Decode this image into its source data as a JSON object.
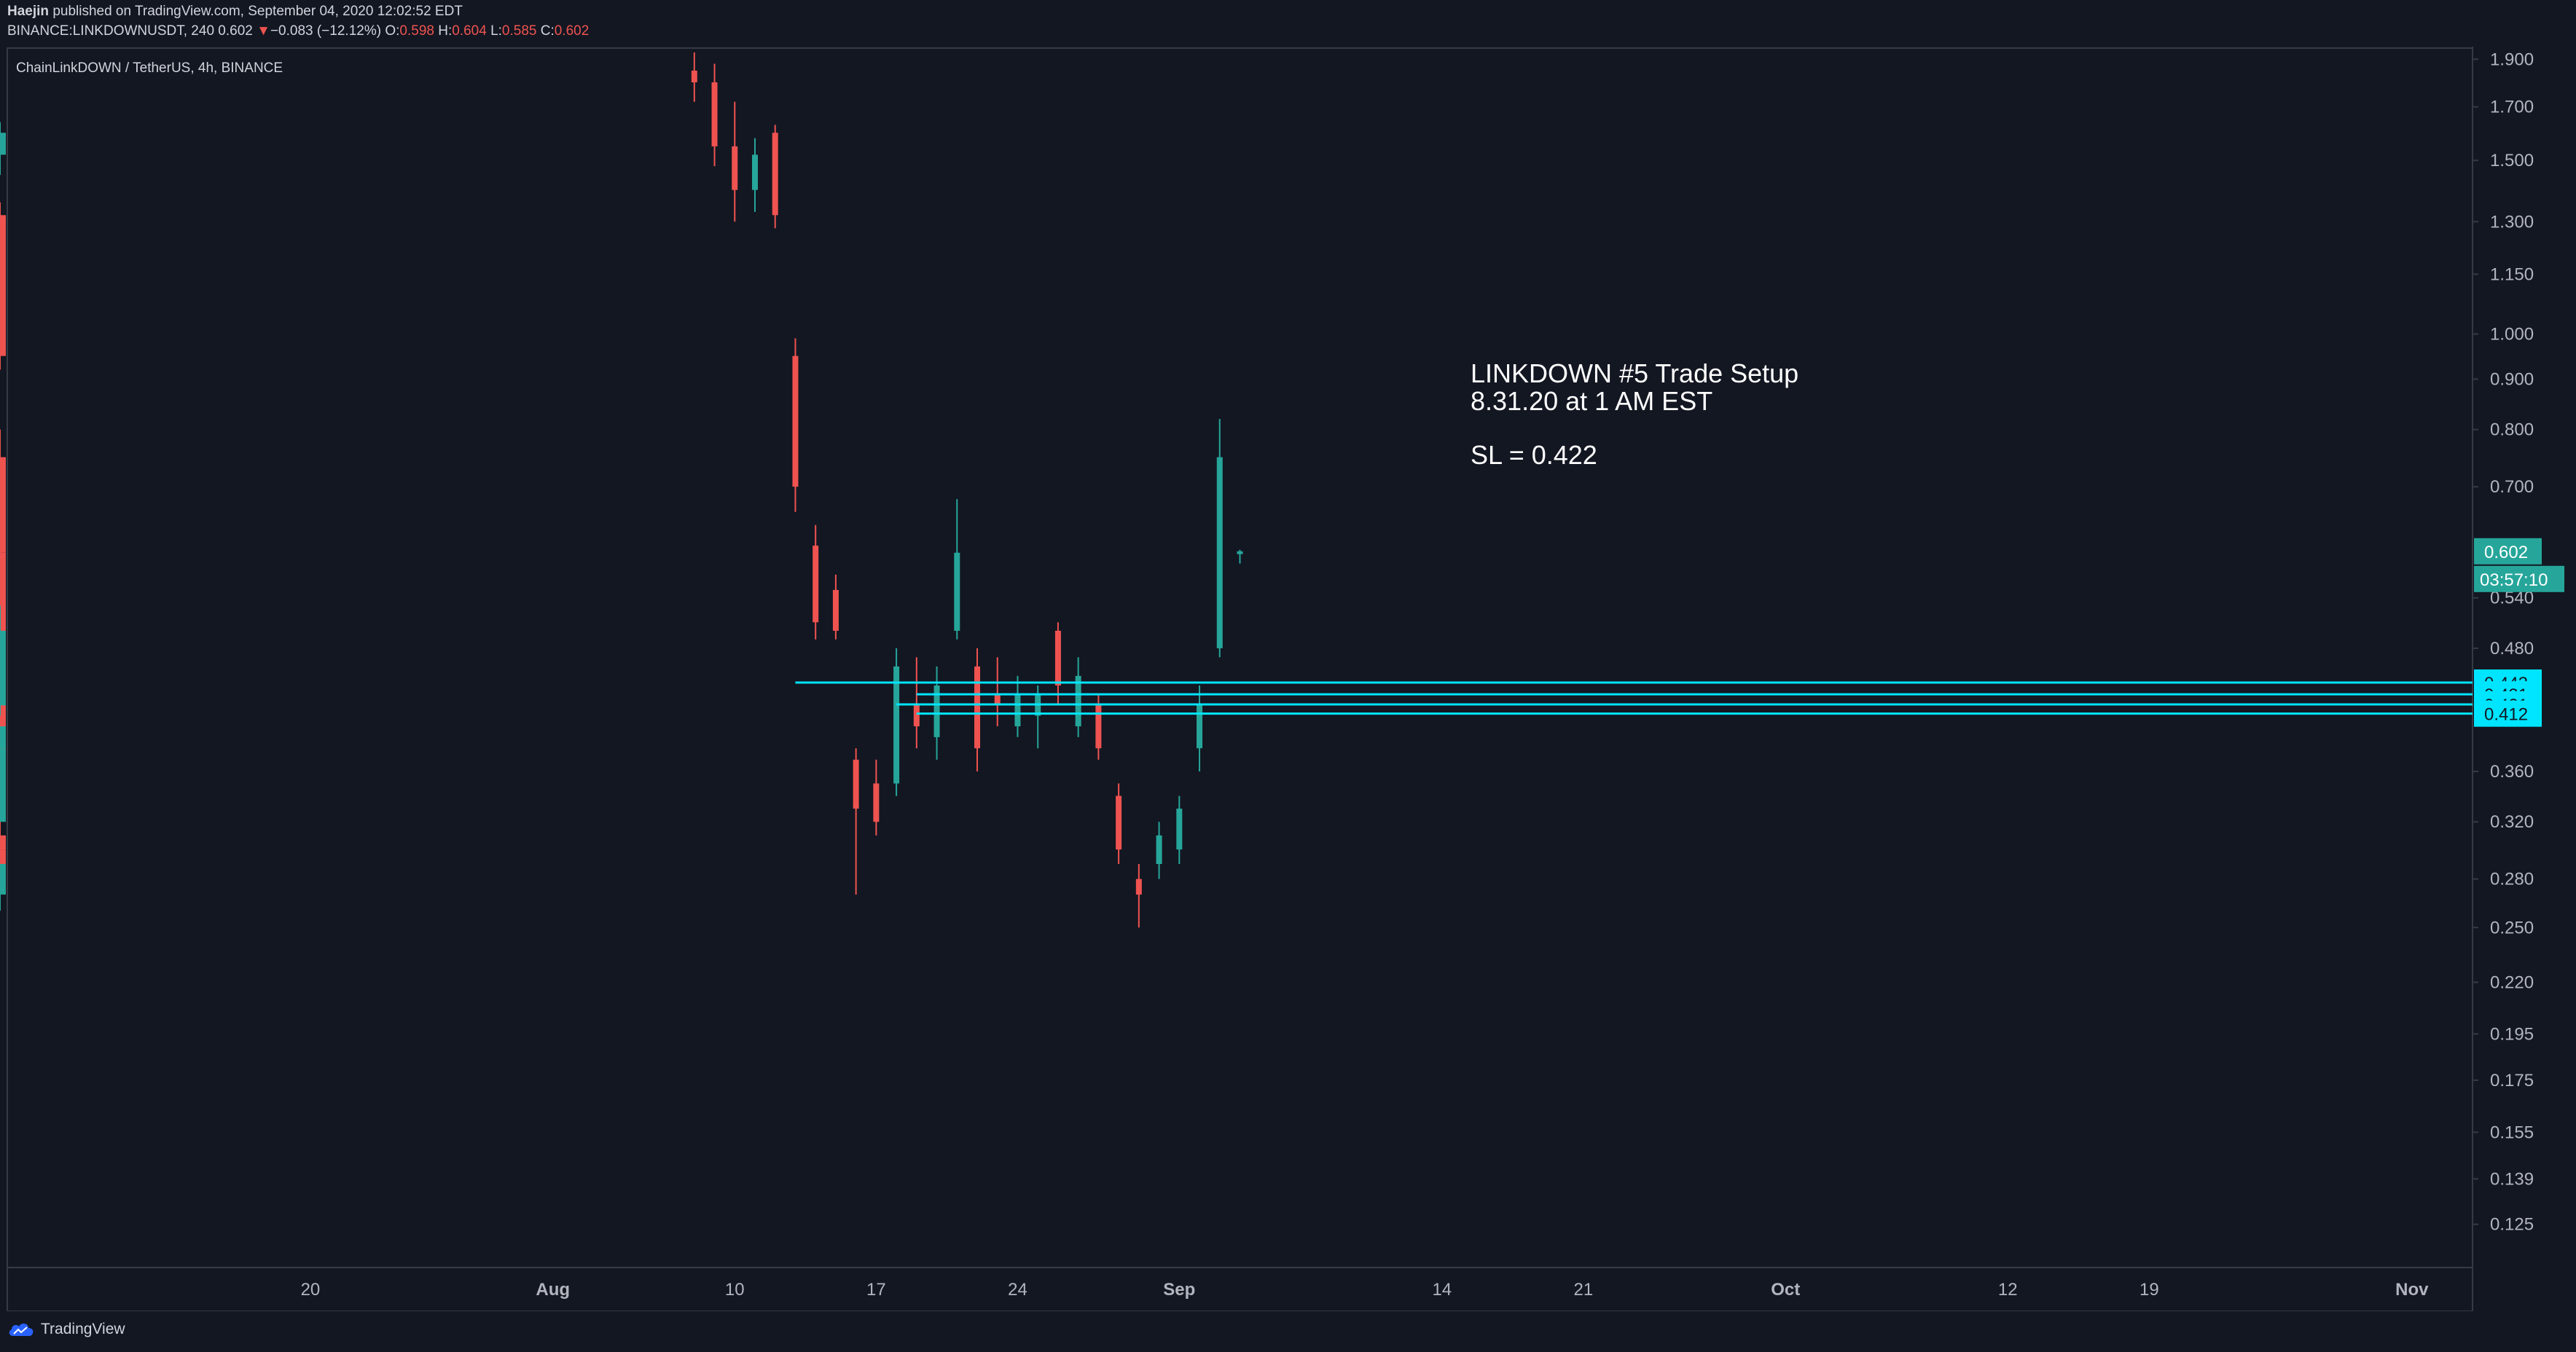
{
  "header": {
    "author": "Haejin",
    "published_text": "published on TradingView.com, September 04, 2020 12:02:52 EDT",
    "symbol_line": "BINANCE:LINKDOWNUSDT, 240",
    "last": "0.602",
    "change": "−0.083 (−12.12%)",
    "o_label": "O:",
    "o_value": "0.598",
    "h_label": "H:",
    "h_value": "0.604",
    "l_label": "L:",
    "l_value": "0.585",
    "c_label": "C:",
    "c_value": "0.602"
  },
  "legend": {
    "symbol": "ChainLinkDOWN / TetherUS, 4h, BINANCE"
  },
  "annotation": {
    "line1": "LINKDOWN #5 Trade Setup",
    "line2": "8.31.20 at 1 AM EST",
    "line3": "SL = 0.422"
  },
  "footer": {
    "brand": "TradingView"
  },
  "chart_data": {
    "type": "candlestick",
    "title": "ChainLinkDOWN / TetherUS, 4h, BINANCE",
    "y_scale": "log",
    "y_ticks": [
      "0.125",
      "0.139",
      "0.155",
      "0.175",
      "0.195",
      "0.220",
      "0.250",
      "0.280",
      "0.320",
      "0.360",
      "0.420",
      "0.480",
      "0.540",
      "0.700",
      "0.800",
      "0.900",
      "1.000",
      "1.150",
      "1.300",
      "1.500",
      "1.700",
      "1.900"
    ],
    "x_ticks": [
      "20",
      "Aug",
      "10",
      "17",
      "24",
      "Sep",
      "14",
      "21",
      "Oct",
      "12",
      "19",
      "Nov"
    ],
    "x_tick_dates": [
      "2020-07-20",
      "2020-08-01",
      "2020-08-10",
      "2020-08-17",
      "2020-08-24",
      "2020-09-01",
      "2020-09-14",
      "2020-09-21",
      "2020-10-01",
      "2020-10-12",
      "2020-10-19",
      "2020-11-01"
    ],
    "x_range": [
      "2020-07-05",
      "2020-11-04"
    ],
    "y_range": [
      0.113,
      1.95
    ],
    "price_marker": {
      "value": "0.602",
      "countdown": "03:57:10",
      "color": "#26a69a"
    },
    "horizontal_levels": [
      {
        "value": 0.443,
        "label": "0.443",
        "start": "2020-08-13"
      },
      {
        "value": 0.431,
        "label": "0.431",
        "start": "2020-08-19"
      },
      {
        "value": 0.421,
        "label": "0.421",
        "start": "2020-08-18"
      },
      {
        "value": 0.412,
        "label": "0.412",
        "start": "2020-08-19"
      }
    ],
    "level_color": "#00e5ff",
    "up_color": "#26a69a",
    "down_color": "#ef5350",
    "candles": [
      {
        "t": "2020-08-08",
        "o": 1.85,
        "h": 1.93,
        "l": 1.72,
        "c": 1.8
      },
      {
        "t": "2020-08-09",
        "o": 1.8,
        "h": 1.88,
        "l": 1.48,
        "c": 1.55
      },
      {
        "t": "2020-08-10",
        "o": 1.55,
        "h": 1.72,
        "l": 1.3,
        "c": 1.4
      },
      {
        "t": "2020-08-11",
        "o": 1.4,
        "h": 1.58,
        "l": 1.33,
        "c": 1.52
      },
      {
        "t": "2020-08-11T12",
        "o": 1.52,
        "h": 1.64,
        "l": 1.45,
        "c": 1.6
      },
      {
        "t": "2020-08-12",
        "o": 1.6,
        "h": 1.63,
        "l": 1.28,
        "c": 1.32
      },
      {
        "t": "2020-08-12T12",
        "o": 1.32,
        "h": 1.36,
        "l": 0.92,
        "c": 0.95
      },
      {
        "t": "2020-08-13",
        "o": 0.95,
        "h": 0.99,
        "l": 0.66,
        "c": 0.7
      },
      {
        "t": "2020-08-13T12",
        "o": 0.7,
        "h": 0.73,
        "l": 0.58,
        "c": 0.61
      },
      {
        "t": "2020-08-14",
        "o": 0.61,
        "h": 0.64,
        "l": 0.49,
        "c": 0.51
      },
      {
        "t": "2020-08-14T12",
        "o": 0.51,
        "h": 0.56,
        "l": 0.47,
        "c": 0.55
      },
      {
        "t": "2020-08-15",
        "o": 0.55,
        "h": 0.57,
        "l": 0.49,
        "c": 0.5
      },
      {
        "t": "2020-08-15T12",
        "o": 0.5,
        "h": 0.52,
        "l": 0.36,
        "c": 0.37
      },
      {
        "t": "2020-08-16",
        "o": 0.37,
        "h": 0.38,
        "l": 0.27,
        "c": 0.33
      },
      {
        "t": "2020-08-16T12",
        "o": 0.33,
        "h": 0.37,
        "l": 0.3,
        "c": 0.35
      },
      {
        "t": "2020-08-17",
        "o": 0.35,
        "h": 0.37,
        "l": 0.31,
        "c": 0.32
      },
      {
        "t": "2020-08-17T12",
        "o": 0.32,
        "h": 0.36,
        "l": 0.31,
        "c": 0.35
      },
      {
        "t": "2020-08-18",
        "o": 0.35,
        "h": 0.48,
        "l": 0.34,
        "c": 0.46
      },
      {
        "t": "2020-08-18T12",
        "o": 0.46,
        "h": 0.55,
        "l": 0.4,
        "c": 0.42
      },
      {
        "t": "2020-08-19",
        "o": 0.42,
        "h": 0.47,
        "l": 0.38,
        "c": 0.4
      },
      {
        "t": "2020-08-19T12",
        "o": 0.4,
        "h": 0.42,
        "l": 0.37,
        "c": 0.39
      },
      {
        "t": "2020-08-20",
        "o": 0.39,
        "h": 0.46,
        "l": 0.37,
        "c": 0.44
      },
      {
        "t": "2020-08-20T12",
        "o": 0.44,
        "h": 0.52,
        "l": 0.42,
        "c": 0.5
      },
      {
        "t": "2020-08-21",
        "o": 0.5,
        "h": 0.68,
        "l": 0.49,
        "c": 0.6
      },
      {
        "t": "2020-08-21T12",
        "o": 0.6,
        "h": 0.62,
        "l": 0.44,
        "c": 0.46
      },
      {
        "t": "2020-08-22",
        "o": 0.46,
        "h": 0.48,
        "l": 0.36,
        "c": 0.38
      },
      {
        "t": "2020-08-22T12",
        "o": 0.38,
        "h": 0.45,
        "l": 0.36,
        "c": 0.43
      },
      {
        "t": "2020-08-23",
        "o": 0.43,
        "h": 0.47,
        "l": 0.4,
        "c": 0.42
      },
      {
        "t": "2020-08-23T12",
        "o": 0.42,
        "h": 0.44,
        "l": 0.38,
        "c": 0.4
      },
      {
        "t": "2020-08-24",
        "o": 0.4,
        "h": 0.45,
        "l": 0.39,
        "c": 0.43
      },
      {
        "t": "2020-08-24T12",
        "o": 0.43,
        "h": 0.45,
        "l": 0.4,
        "c": 0.41
      },
      {
        "t": "2020-08-25",
        "o": 0.41,
        "h": 0.44,
        "l": 0.38,
        "c": 0.43
      },
      {
        "t": "2020-08-25T12",
        "o": 0.43,
        "h": 0.53,
        "l": 0.42,
        "c": 0.5
      },
      {
        "t": "2020-08-26",
        "o": 0.5,
        "h": 0.51,
        "l": 0.42,
        "c": 0.44
      },
      {
        "t": "2020-08-26T12",
        "o": 0.44,
        "h": 0.46,
        "l": 0.38,
        "c": 0.4
      },
      {
        "t": "2020-08-27",
        "o": 0.4,
        "h": 0.47,
        "l": 0.39,
        "c": 0.45
      },
      {
        "t": "2020-08-27T12",
        "o": 0.45,
        "h": 0.47,
        "l": 0.41,
        "c": 0.42
      },
      {
        "t": "2020-08-28",
        "o": 0.42,
        "h": 0.43,
        "l": 0.37,
        "c": 0.38
      },
      {
        "t": "2020-08-28T12",
        "o": 0.38,
        "h": 0.39,
        "l": 0.33,
        "c": 0.34
      },
      {
        "t": "2020-08-29",
        "o": 0.34,
        "h": 0.35,
        "l": 0.29,
        "c": 0.3
      },
      {
        "t": "2020-08-29T12",
        "o": 0.3,
        "h": 0.31,
        "l": 0.27,
        "c": 0.28
      },
      {
        "t": "2020-08-30",
        "o": 0.28,
        "h": 0.29,
        "l": 0.25,
        "c": 0.27
      },
      {
        "t": "2020-08-30T12",
        "o": 0.27,
        "h": 0.3,
        "l": 0.26,
        "c": 0.29
      },
      {
        "t": "2020-08-31",
        "o": 0.29,
        "h": 0.32,
        "l": 0.28,
        "c": 0.31
      },
      {
        "t": "2020-08-31T12",
        "o": 0.31,
        "h": 0.34,
        "l": 0.29,
        "c": 0.3
      },
      {
        "t": "2020-09-01",
        "o": 0.3,
        "h": 0.34,
        "l": 0.29,
        "c": 0.33
      },
      {
        "t": "2020-09-01T12",
        "o": 0.33,
        "h": 0.4,
        "l": 0.32,
        "c": 0.38
      },
      {
        "t": "2020-09-02",
        "o": 0.38,
        "h": 0.44,
        "l": 0.36,
        "c": 0.42
      },
      {
        "t": "2020-09-02T12",
        "o": 0.42,
        "h": 0.5,
        "l": 0.41,
        "c": 0.48
      },
      {
        "t": "2020-09-03",
        "o": 0.48,
        "h": 0.82,
        "l": 0.47,
        "c": 0.75
      },
      {
        "t": "2020-09-03T12",
        "o": 0.75,
        "h": 0.8,
        "l": 0.58,
        "c": 0.6
      },
      {
        "t": "2020-09-04",
        "o": 0.598,
        "h": 0.604,
        "l": 0.585,
        "c": 0.602
      }
    ]
  }
}
